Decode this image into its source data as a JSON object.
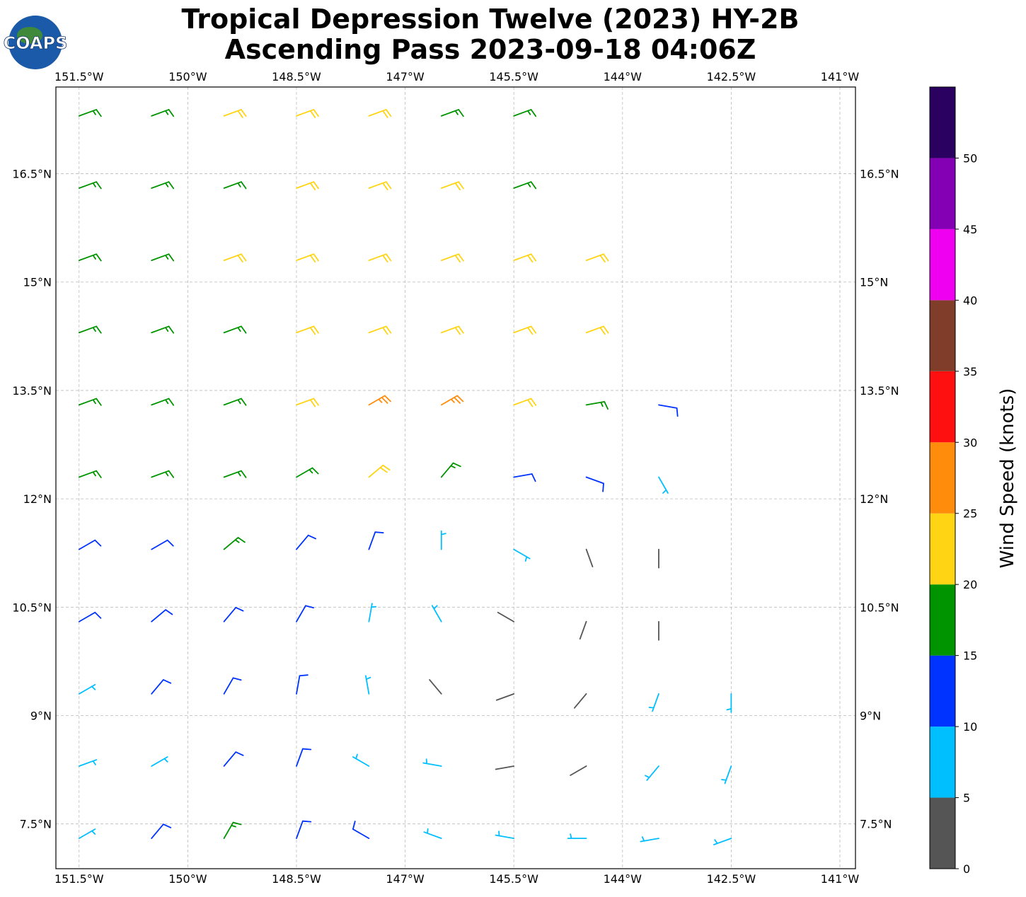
{
  "logo": "COAPS",
  "chart_data": {
    "type": "wind_barbs",
    "title": "Tropical Depression Twelve (2023) HY-2B",
    "subtitle": "Ascending Pass 2023-09-18 04:06Z",
    "xlim": [
      -151.82,
      -140.785
    ],
    "ylim": [
      6.88,
      17.7
    ],
    "xticks": [
      {
        "value": -151.5,
        "label": "151.5°W"
      },
      {
        "value": -150,
        "label": "150°W"
      },
      {
        "value": -148.5,
        "label": "148.5°W"
      },
      {
        "value": -147,
        "label": "147°W"
      },
      {
        "value": -145.5,
        "label": "145.5°W"
      },
      {
        "value": -144,
        "label": "144°W"
      },
      {
        "value": -142.5,
        "label": "142.5°W"
      },
      {
        "value": -141,
        "label": "141°W"
      }
    ],
    "yticks": [
      {
        "value": 16.5,
        "label": "16.5°N"
      },
      {
        "value": 15,
        "label": "15°N"
      },
      {
        "value": 13.5,
        "label": "13.5°N"
      },
      {
        "value": 12,
        "label": "12°N"
      },
      {
        "value": 10.5,
        "label": "10.5°N"
      },
      {
        "value": 9,
        "label": "9°N"
      },
      {
        "value": 7.5,
        "label": "7.5°N"
      }
    ],
    "grid": true,
    "wind": [
      {
        "lat": 17.3,
        "lon": [
          -151.5,
          -150.5,
          -149.5,
          -148.5,
          -147.5,
          -146.5,
          -145.5
        ],
        "speed": [
          17,
          17,
          22,
          22,
          22,
          17,
          17
        ],
        "direction": [
          70,
          70,
          70,
          70,
          70,
          70,
          70
        ]
      },
      {
        "lat": 16.3,
        "lon": [
          -151.5,
          -150.5,
          -149.5,
          -148.5,
          -147.5,
          -146.5,
          -145.5
        ],
        "speed": [
          17,
          17,
          17,
          22,
          22,
          22,
          17
        ],
        "direction": [
          70,
          70,
          70,
          70,
          70,
          70,
          70
        ]
      },
      {
        "lat": 15.3,
        "lon": [
          -151.5,
          -150.5,
          -149.5,
          -148.5,
          -147.5,
          -146.5,
          -145.5,
          -144.5
        ],
        "speed": [
          17,
          17,
          22,
          22,
          22,
          22,
          22,
          22
        ],
        "direction": [
          70,
          70,
          70,
          70,
          70,
          70,
          70,
          70
        ]
      },
      {
        "lat": 14.3,
        "lon": [
          -151.5,
          -150.5,
          -149.5,
          -148.5,
          -147.5,
          -146.5,
          -145.5,
          -144.5
        ],
        "speed": [
          17,
          17,
          17,
          22,
          22,
          22,
          22,
          22
        ],
        "direction": [
          70,
          70,
          70,
          70,
          70,
          70,
          70,
          70
        ]
      },
      {
        "lat": 13.3,
        "lon": [
          -151.5,
          -150.5,
          -149.5,
          -148.5,
          -147.5,
          -146.5,
          -145.5,
          -144.5,
          -143.5
        ],
        "speed": [
          17,
          17,
          17,
          22,
          27,
          27,
          22,
          17,
          12
        ],
        "direction": [
          70,
          70,
          70,
          70,
          60,
          60,
          70,
          80,
          100
        ]
      },
      {
        "lat": 12.3,
        "lon": [
          -151.5,
          -150.5,
          -149.5,
          -148.5,
          -147.5,
          -146.5,
          -145.5,
          -144.5,
          -143.5
        ],
        "speed": [
          17,
          17,
          17,
          17,
          22,
          17,
          12,
          12,
          8
        ],
        "direction": [
          70,
          70,
          70,
          60,
          50,
          40,
          80,
          110,
          150
        ]
      },
      {
        "lat": 11.3,
        "lon": [
          -151.5,
          -150.5,
          -149.5,
          -148.5,
          -147.5,
          -146.5,
          -145.5,
          -144.5,
          -143.5
        ],
        "speed": [
          12,
          12,
          17,
          12,
          12,
          7,
          7,
          3,
          3
        ],
        "direction": [
          60,
          60,
          50,
          40,
          20,
          0,
          120,
          160,
          180
        ]
      },
      {
        "lat": 10.3,
        "lon": [
          -151.5,
          -150.5,
          -149.5,
          -148.5,
          -147.5,
          -146.5,
          -145.5,
          -144.5,
          -143.5
        ],
        "speed": [
          12,
          12,
          12,
          12,
          7,
          7,
          3,
          3,
          3
        ],
        "direction": [
          60,
          50,
          40,
          30,
          10,
          330,
          300,
          200,
          180
        ]
      },
      {
        "lat": 9.3,
        "lon": [
          -151.5,
          -150.5,
          -149.5,
          -148.5,
          -147.5,
          -146.5,
          -145.5,
          -144.5,
          -143.5,
          -142.5
        ],
        "speed": [
          8,
          12,
          12,
          12,
          7,
          3,
          3,
          3,
          8,
          8
        ],
        "direction": [
          60,
          40,
          30,
          10,
          350,
          320,
          250,
          220,
          200,
          180
        ]
      },
      {
        "lat": 8.3,
        "lon": [
          -151.5,
          -150.5,
          -149.5,
          -148.5,
          -147.5,
          -146.5,
          -145.5,
          -144.5,
          -143.5,
          -142.5
        ],
        "speed": [
          8,
          8,
          12,
          12,
          8,
          8,
          3,
          3,
          8,
          8
        ],
        "direction": [
          70,
          60,
          40,
          20,
          300,
          280,
          260,
          240,
          220,
          200
        ]
      },
      {
        "lat": 7.3,
        "lon": [
          -151.5,
          -150.5,
          -149.5,
          -148.5,
          -147.5,
          -146.5,
          -145.5,
          -144.5,
          -143.5,
          -142.5
        ],
        "speed": [
          8,
          12,
          17,
          12,
          12,
          8,
          8,
          8,
          8,
          8
        ],
        "direction": [
          60,
          40,
          30,
          20,
          300,
          290,
          280,
          270,
          260,
          250
        ]
      }
    ],
    "colorbar": {
      "label": "Wind Speed (knots)",
      "bounds": [
        0,
        5,
        10,
        15,
        20,
        25,
        30,
        35,
        40,
        45,
        50,
        55
      ],
      "colors": [
        "#555555",
        "#00bfff",
        "#0033ff",
        "#009400",
        "#ffd414",
        "#ff8c0a",
        "#ff1010",
        "#7f3d2a",
        "#f000f0",
        "#8400b4",
        "#2a0060"
      ],
      "ticks": [
        0,
        5,
        10,
        15,
        20,
        25,
        30,
        35,
        40,
        45,
        50
      ]
    }
  }
}
